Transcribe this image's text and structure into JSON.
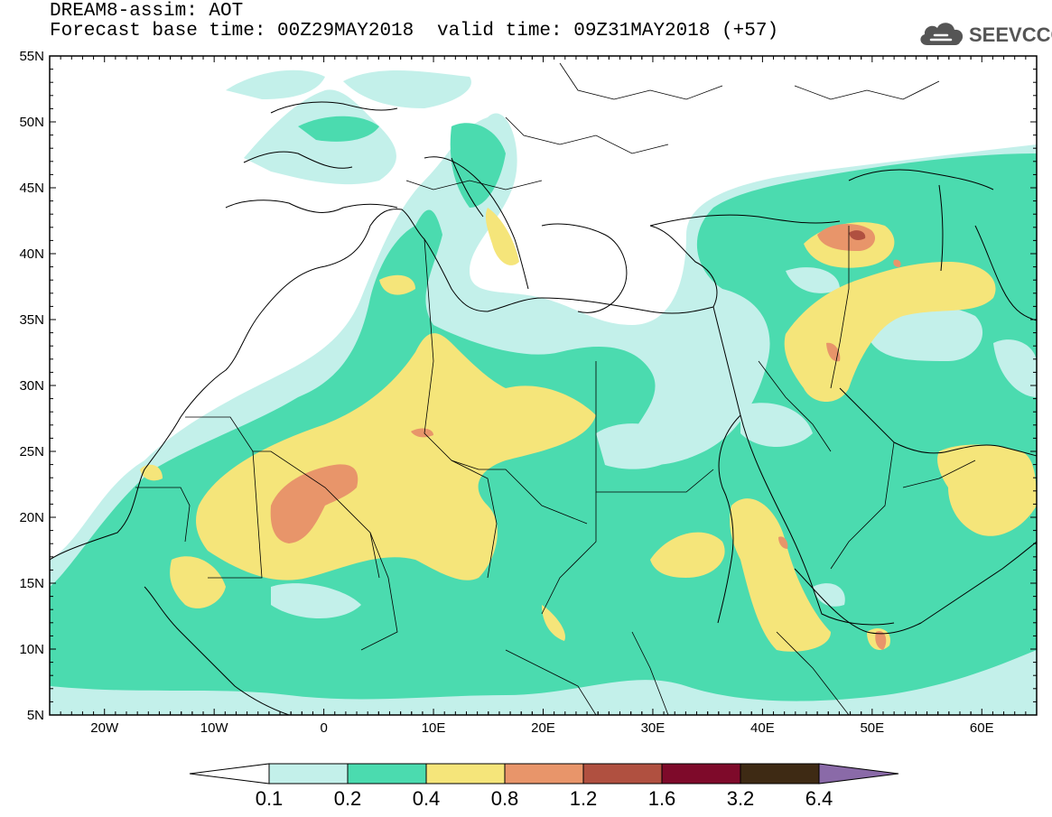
{
  "header": {
    "title": "DREAM8-assim: AOT",
    "base_time": "Forecast base time: 00Z29MAY2018",
    "valid_time": "valid time: 09Z31MAY2018 (+57)"
  },
  "logo": {
    "text": "SEEVCCC",
    "icon": "cloud-icon"
  },
  "map": {
    "lat_labels": [
      "55N",
      "50N",
      "45N",
      "40N",
      "35N",
      "30N",
      "25N",
      "20N",
      "15N",
      "10N",
      "5N"
    ],
    "lon_labels": [
      "20W",
      "10W",
      "0",
      "10E",
      "20E",
      "30E",
      "40E",
      "50E",
      "60E"
    ],
    "lon_range": [
      -25,
      65
    ],
    "lat_range": [
      5,
      55
    ]
  },
  "colorbar": {
    "labels": [
      "0.1",
      "0.2",
      "0.4",
      "0.8",
      "1.2",
      "1.6",
      "3.2",
      "6.4"
    ],
    "colors": [
      "#ffffff",
      "#c3f0ea",
      "#4bdbaf",
      "#f5e57a",
      "#e8956a",
      "#b05040",
      "#7e0a2a",
      "#3e2a14",
      "#8a6aa8"
    ]
  }
}
